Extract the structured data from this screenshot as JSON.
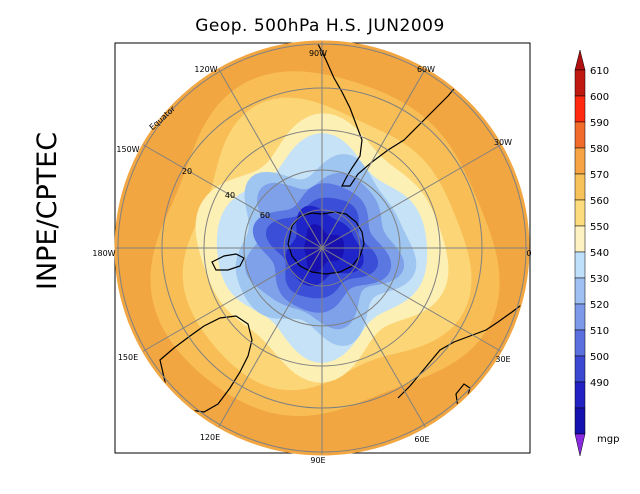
{
  "title": "Geop. 500hPa H.S. JUN2009",
  "side_label": "INPE/CPTEC",
  "map": {
    "longitude_labels": {
      "top": "90W",
      "upper_right": "60W",
      "right_upper": "30W",
      "right": "0",
      "right_lower": "30E",
      "lower_right": "60E",
      "bottom": "90E",
      "lower_left": "120E",
      "left_lower": "150E",
      "left": "180W",
      "left_upper": "150W",
      "upper_left": "120W"
    },
    "latitude_labels": [
      "Equator",
      "20",
      "40",
      "60"
    ],
    "fill_colors": {
      "ring_outer": "#f2a641",
      "ring_580": "#f8be55",
      "ring_570": "#fcd576",
      "ring_560": "#fdf0b5",
      "ring_550": "#c5e2f7",
      "ring_540": "#9fc6f0",
      "ring_530": "#7ea1ea",
      "ring_520": "#5a77e2",
      "ring_510": "#3b4ed7",
      "ring_500": "#1f25c8",
      "core": "#1810b0"
    }
  },
  "colorbar": {
    "levels": [
      "610",
      "600",
      "590",
      "580",
      "570",
      "560",
      "550",
      "540",
      "530",
      "520",
      "510",
      "500",
      "490"
    ],
    "unit": "mgp",
    "colors": [
      "#c01a10",
      "#ff2a10",
      "#f36b2b",
      "#f6a444",
      "#f8c25a",
      "#fddc7e",
      "#fff2c2",
      "#bfe0fa",
      "#9ec0f2",
      "#7c98e8",
      "#5a70de",
      "#3a48d2",
      "#2222c4",
      "#1510b0"
    ],
    "top_arrow_color": "#b01010",
    "bottom_arrow_color": "#8a2be2"
  }
}
